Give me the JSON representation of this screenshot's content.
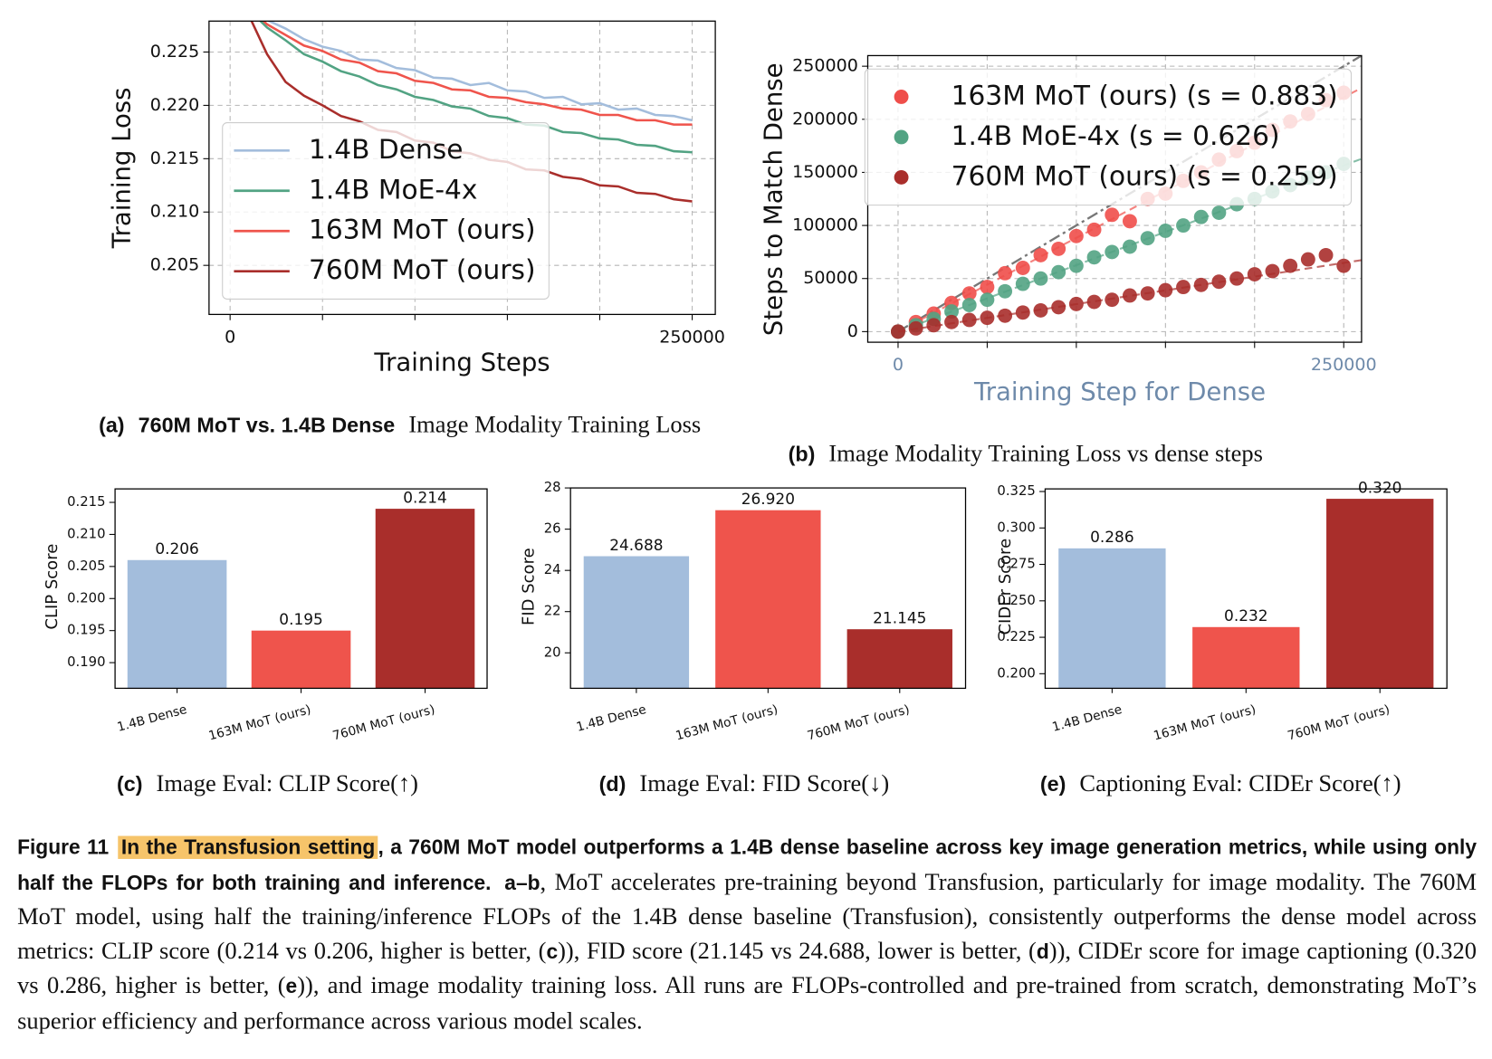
{
  "chart_data": [
    {
      "type": "line",
      "xlabel": "Training Steps",
      "ylabel": "Training Loss",
      "x": [
        10000,
        20000,
        30000,
        40000,
        50000,
        60000,
        70000,
        80000,
        90000,
        100000,
        110000,
        120000,
        130000,
        140000,
        150000,
        160000,
        170000,
        180000,
        190000,
        200000,
        210000,
        220000,
        230000,
        240000,
        250000
      ],
      "xlim": [
        -11400,
        262500
      ],
      "ylim": [
        0.2004,
        0.2279
      ],
      "xticks": [
        0,
        250000
      ],
      "xticks_minor": [
        50000,
        100000,
        150000,
        200000
      ],
      "yticks": [
        0.205,
        {
          "value": 0.21,
          "label": "0.210"
        },
        0.215,
        {
          "value": 0.22,
          "label": "0.220"
        },
        0.225
      ],
      "grid": true,
      "legend": "lower left",
      "series": [
        {
          "name": "1.4B Dense",
          "color": "#a3bddc",
          "values": [
            0.2295,
            0.228,
            0.2272,
            0.2262,
            0.2255,
            0.2251,
            0.2243,
            0.2242,
            0.2235,
            0.2233,
            0.2226,
            0.2225,
            0.2219,
            0.2221,
            0.2214,
            0.2213,
            0.2207,
            0.2208,
            0.2201,
            0.2202,
            0.2196,
            0.2197,
            0.2191,
            0.219,
            0.2186
          ]
        },
        {
          "name": "1.4B MoE-4x",
          "color": "#52a383",
          "values": [
            0.229,
            0.2273,
            0.2261,
            0.2248,
            0.2241,
            0.2232,
            0.2227,
            0.2219,
            0.2215,
            0.2208,
            0.2205,
            0.2199,
            0.2197,
            0.219,
            0.2188,
            0.2182,
            0.2181,
            0.2175,
            0.2174,
            0.2169,
            0.2168,
            0.2163,
            0.2162,
            0.2157,
            0.2156
          ]
        },
        {
          "name": "163M MoT (ours)",
          "color": "#ef544c",
          "values": [
            0.2292,
            0.2276,
            0.2266,
            0.2256,
            0.2251,
            0.2243,
            0.224,
            0.2232,
            0.223,
            0.2223,
            0.2221,
            0.2215,
            0.2214,
            0.2208,
            0.2207,
            0.2203,
            0.2201,
            0.2197,
            0.2196,
            0.2191,
            0.2191,
            0.2186,
            0.2186,
            0.2182,
            0.2182
          ]
        },
        {
          "name": "760M MoT (ours)",
          "color": "#a92e2b",
          "values": [
            0.2285,
            0.2248,
            0.2222,
            0.2209,
            0.22,
            0.219,
            0.2185,
            0.2177,
            0.2175,
            0.2167,
            0.2165,
            0.2157,
            0.2155,
            0.2149,
            0.2147,
            0.214,
            0.2139,
            0.2133,
            0.2131,
            0.2125,
            0.2124,
            0.2118,
            0.2117,
            0.2112,
            0.211
          ]
        }
      ],
      "caption": {
        "label": "(a)",
        "bold": "760M MoT vs. 1.4B Dense",
        "text": "Image Modality Training Loss"
      }
    },
    {
      "type": "scatter",
      "xlabel": "Training Step for Dense",
      "ylabel": "Steps to Match Dense",
      "xaxis_color": "#6e8aaa",
      "x": [
        0,
        10000,
        20000,
        30000,
        40000,
        50000,
        60000,
        70000,
        80000,
        90000,
        100000,
        110000,
        120000,
        130000,
        140000,
        150000,
        160000,
        170000,
        180000,
        190000,
        200000,
        210000,
        220000,
        230000,
        240000,
        250000
      ],
      "xlim": [
        -17000,
        260000
      ],
      "ylim": [
        -10000,
        260000
      ],
      "xticks": [
        0,
        250000
      ],
      "xticks_minor": [
        50000,
        100000,
        150000,
        200000
      ],
      "yticks": [
        0,
        50000,
        100000,
        150000,
        200000,
        250000
      ],
      "grid": true,
      "legend": "upper left",
      "series": [
        {
          "name": "163M MoT (ours) (s = 0.883)",
          "color": "#ef4e4a",
          "slope": 0.883,
          "values": [
            0,
            9000,
            17000,
            27000,
            36000,
            42000,
            55000,
            60000,
            72000,
            78000,
            90000,
            96000,
            110000,
            104000,
            125000,
            130000,
            142000,
            150000,
            162000,
            170000,
            178000,
            190000,
            198000,
            205000,
            218000,
            225000
          ]
        },
        {
          "name": "1.4B MoE-4x (s = 0.626)",
          "color": "#52a383",
          "slope": 0.626,
          "values": [
            0,
            6000,
            12000,
            19000,
            25000,
            30000,
            38000,
            45000,
            50000,
            56000,
            62000,
            70000,
            75000,
            80000,
            88000,
            95000,
            100000,
            108000,
            112000,
            120000,
            125000,
            132000,
            138000,
            145000,
            150000,
            158000
          ]
        },
        {
          "name": "760M MoT (ours) (s = 0.259)",
          "color": "#a92e2b",
          "slope": 0.259,
          "values": [
            0,
            3000,
            6000,
            9000,
            11000,
            13000,
            15000,
            18000,
            20000,
            23000,
            26000,
            28000,
            30000,
            34000,
            36000,
            39000,
            42000,
            44000,
            47000,
            50000,
            54000,
            57000,
            62000,
            68000,
            72000,
            62000
          ]
        }
      ],
      "caption": {
        "label": "(b)",
        "text": "Image Modality Training Loss vs dense steps"
      }
    },
    {
      "type": "bar",
      "ylabel": "CLIP Score",
      "categories": [
        "1.4B Dense",
        "163M MoT (ours)",
        "760M MoT (ours)"
      ],
      "values": [
        0.206,
        0.195,
        0.214
      ],
      "value_labels": [
        "0.206",
        "0.195",
        "0.214"
      ],
      "colors": [
        "#a3bddc",
        "#ef544c",
        "#a92e2b"
      ],
      "ylim": [
        0.186,
        0.2171
      ],
      "yticks": [
        {
          "value": 0.19,
          "label": "0.190"
        },
        0.195,
        {
          "value": 0.2,
          "label": "0.200"
        },
        0.205,
        {
          "value": 0.21,
          "label": "0.210"
        },
        0.215
      ],
      "caption": {
        "label": "(c)",
        "text": "Image Eval: CLIP Score(↑)"
      }
    },
    {
      "type": "bar",
      "ylabel": "FID Score",
      "categories": [
        "1.4B Dense",
        "163M MoT (ours)",
        "760M MoT (ours)"
      ],
      "values": [
        24.688,
        26.92,
        21.145
      ],
      "value_labels": [
        "24.688",
        "26.920",
        "21.145"
      ],
      "colors": [
        "#a3bddc",
        "#ef544c",
        "#a92e2b"
      ],
      "ylim": [
        18.28,
        28
      ],
      "yticks": [
        20,
        22,
        24,
        26,
        28
      ],
      "caption": {
        "label": "(d)",
        "text": "Image Eval: FID Score(↓)"
      }
    },
    {
      "type": "bar",
      "ylabel": "CIDEr Score",
      "categories": [
        "1.4B Dense",
        "163M MoT (ours)",
        "760M MoT (ours)"
      ],
      "values": [
        0.286,
        0.232,
        0.32
      ],
      "value_labels": [
        "0.286",
        "0.232",
        "0.320"
      ],
      "colors": [
        "#a3bddc",
        "#ef544c",
        "#a92e2b"
      ],
      "ylim": [
        0.19,
        0.3268
      ],
      "yticks": [
        {
          "value": 0.2,
          "label": "0.200"
        },
        0.225,
        {
          "value": 0.25,
          "label": "0.250"
        },
        0.275,
        {
          "value": 0.3,
          "label": "0.300"
        },
        0.325
      ],
      "caption": {
        "label": "(e)",
        "text": "Captioning Eval: CIDEr Score(↑)"
      }
    }
  ],
  "figure_caption": {
    "label": "Figure 11",
    "runs": [
      {
        "text": "In the Transfusion setting",
        "style": "highlight"
      },
      {
        "text": ", a 760M MoT model outperforms a 1.4B dense baseline across key image generation metrics, while using only half the FLOPs for both training and inference.",
        "style": "bold"
      },
      {
        "text": "a–b",
        "style": "bold-gap"
      },
      {
        "text": ", MoT accelerates pre-training beyond Transfusion, particularly for image modality. The 760M MoT model, using half the training/inference FLOPs of the 1.4B dense baseline (Transfusion), consistently outperforms the dense model across metrics: CLIP score (0.214 vs 0.206, higher is better, (",
        "style": "plain"
      },
      {
        "text": "c",
        "style": "bold"
      },
      {
        "text": ")), FID score (21.145 vs 24.688, lower is better, (",
        "style": "plain"
      },
      {
        "text": "d",
        "style": "bold"
      },
      {
        "text": ")), CIDEr score for image captioning (0.320 vs 0.286, higher is better, (",
        "style": "plain"
      },
      {
        "text": "e",
        "style": "bold"
      },
      {
        "text": ")), and image modality training loss. All runs are FLOPs-controlled and pre-trained from scratch, demonstrating MoT’s superior efficiency and performance across various model scales.",
        "style": "plain"
      }
    ]
  }
}
